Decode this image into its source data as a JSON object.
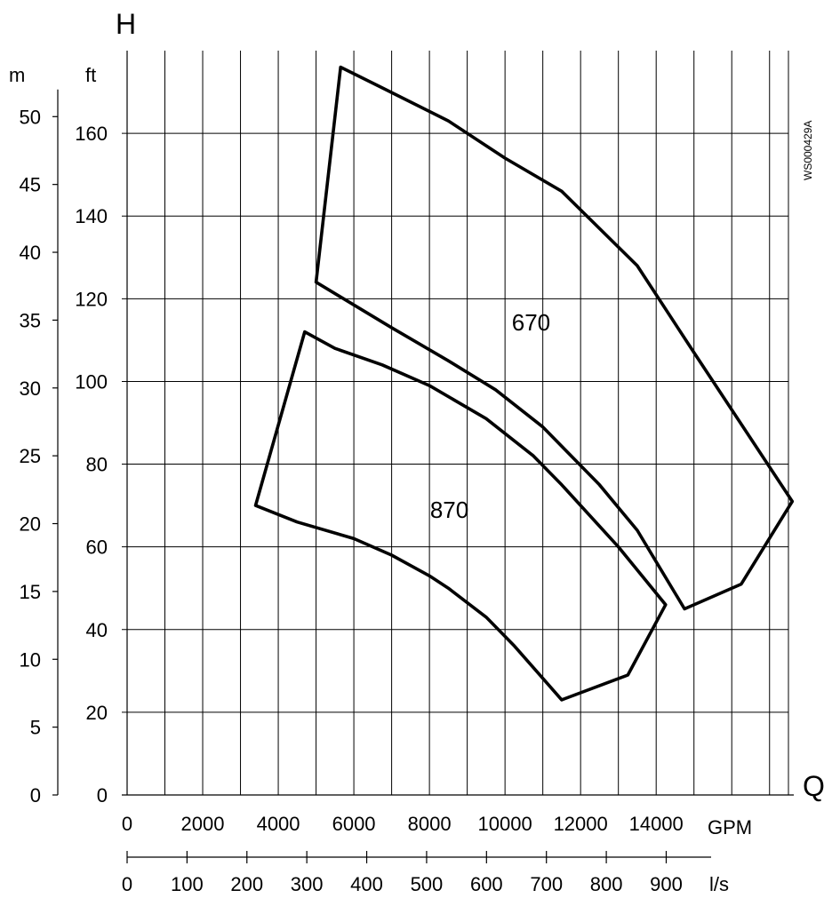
{
  "chart_data": {
    "type": "area",
    "title": "",
    "axes": {
      "y_letter": "H",
      "x_letter": "Q",
      "y_left_unit": "m",
      "y_ft_unit": "ft",
      "x_gpm_unit": "GPM",
      "x_ls_unit": "l/s"
    },
    "doc_code": "WS000429A",
    "gpm_ticks": [
      "0",
      "2000",
      "4000",
      "6000",
      "8000",
      "10000",
      "12000",
      "14000"
    ],
    "ls_ticks": [
      "0",
      "100",
      "200",
      "300",
      "400",
      "500",
      "600",
      "700",
      "800",
      "900"
    ],
    "ft_ticks": [
      "0",
      "20",
      "40",
      "60",
      "80",
      "100",
      "120",
      "140",
      "160"
    ],
    "m_ticks": [
      "0",
      "5",
      "10",
      "15",
      "20",
      "25",
      "30",
      "35",
      "40",
      "45",
      "50"
    ],
    "xlim_gpm": [
      0,
      17500
    ],
    "ylim_ft": [
      0,
      180
    ],
    "grid": true,
    "series": [
      {
        "name": "670",
        "x_unit": "GPM",
        "y_unit": "ft",
        "points": [
          [
            5650,
            176
          ],
          [
            5000,
            124
          ],
          [
            7000,
            113
          ],
          [
            8500,
            105
          ],
          [
            9750,
            98
          ],
          [
            11000,
            89
          ],
          [
            12500,
            75
          ],
          [
            13500,
            64
          ],
          [
            14750,
            45
          ],
          [
            16250,
            51
          ],
          [
            17600,
            71
          ],
          [
            15000,
            107
          ],
          [
            13500,
            128
          ],
          [
            11500,
            146
          ],
          [
            10000,
            154
          ],
          [
            8500,
            163
          ],
          [
            6750,
            171
          ],
          [
            5650,
            176
          ]
        ]
      },
      {
        "name": "870",
        "x_unit": "GPM",
        "y_unit": "ft",
        "points": [
          [
            4700,
            112
          ],
          [
            3400,
            70
          ],
          [
            4500,
            66
          ],
          [
            6000,
            62
          ],
          [
            7000,
            58
          ],
          [
            8000,
            53
          ],
          [
            8500,
            50
          ],
          [
            9500,
            43
          ],
          [
            10250,
            36
          ],
          [
            11500,
            23
          ],
          [
            13250,
            29
          ],
          [
            14250,
            46
          ],
          [
            13000,
            60
          ],
          [
            11500,
            75
          ],
          [
            10750,
            82
          ],
          [
            9500,
            91
          ],
          [
            8000,
            99
          ],
          [
            6750,
            104
          ],
          [
            5500,
            108
          ],
          [
            4700,
            112
          ]
        ]
      }
    ]
  }
}
